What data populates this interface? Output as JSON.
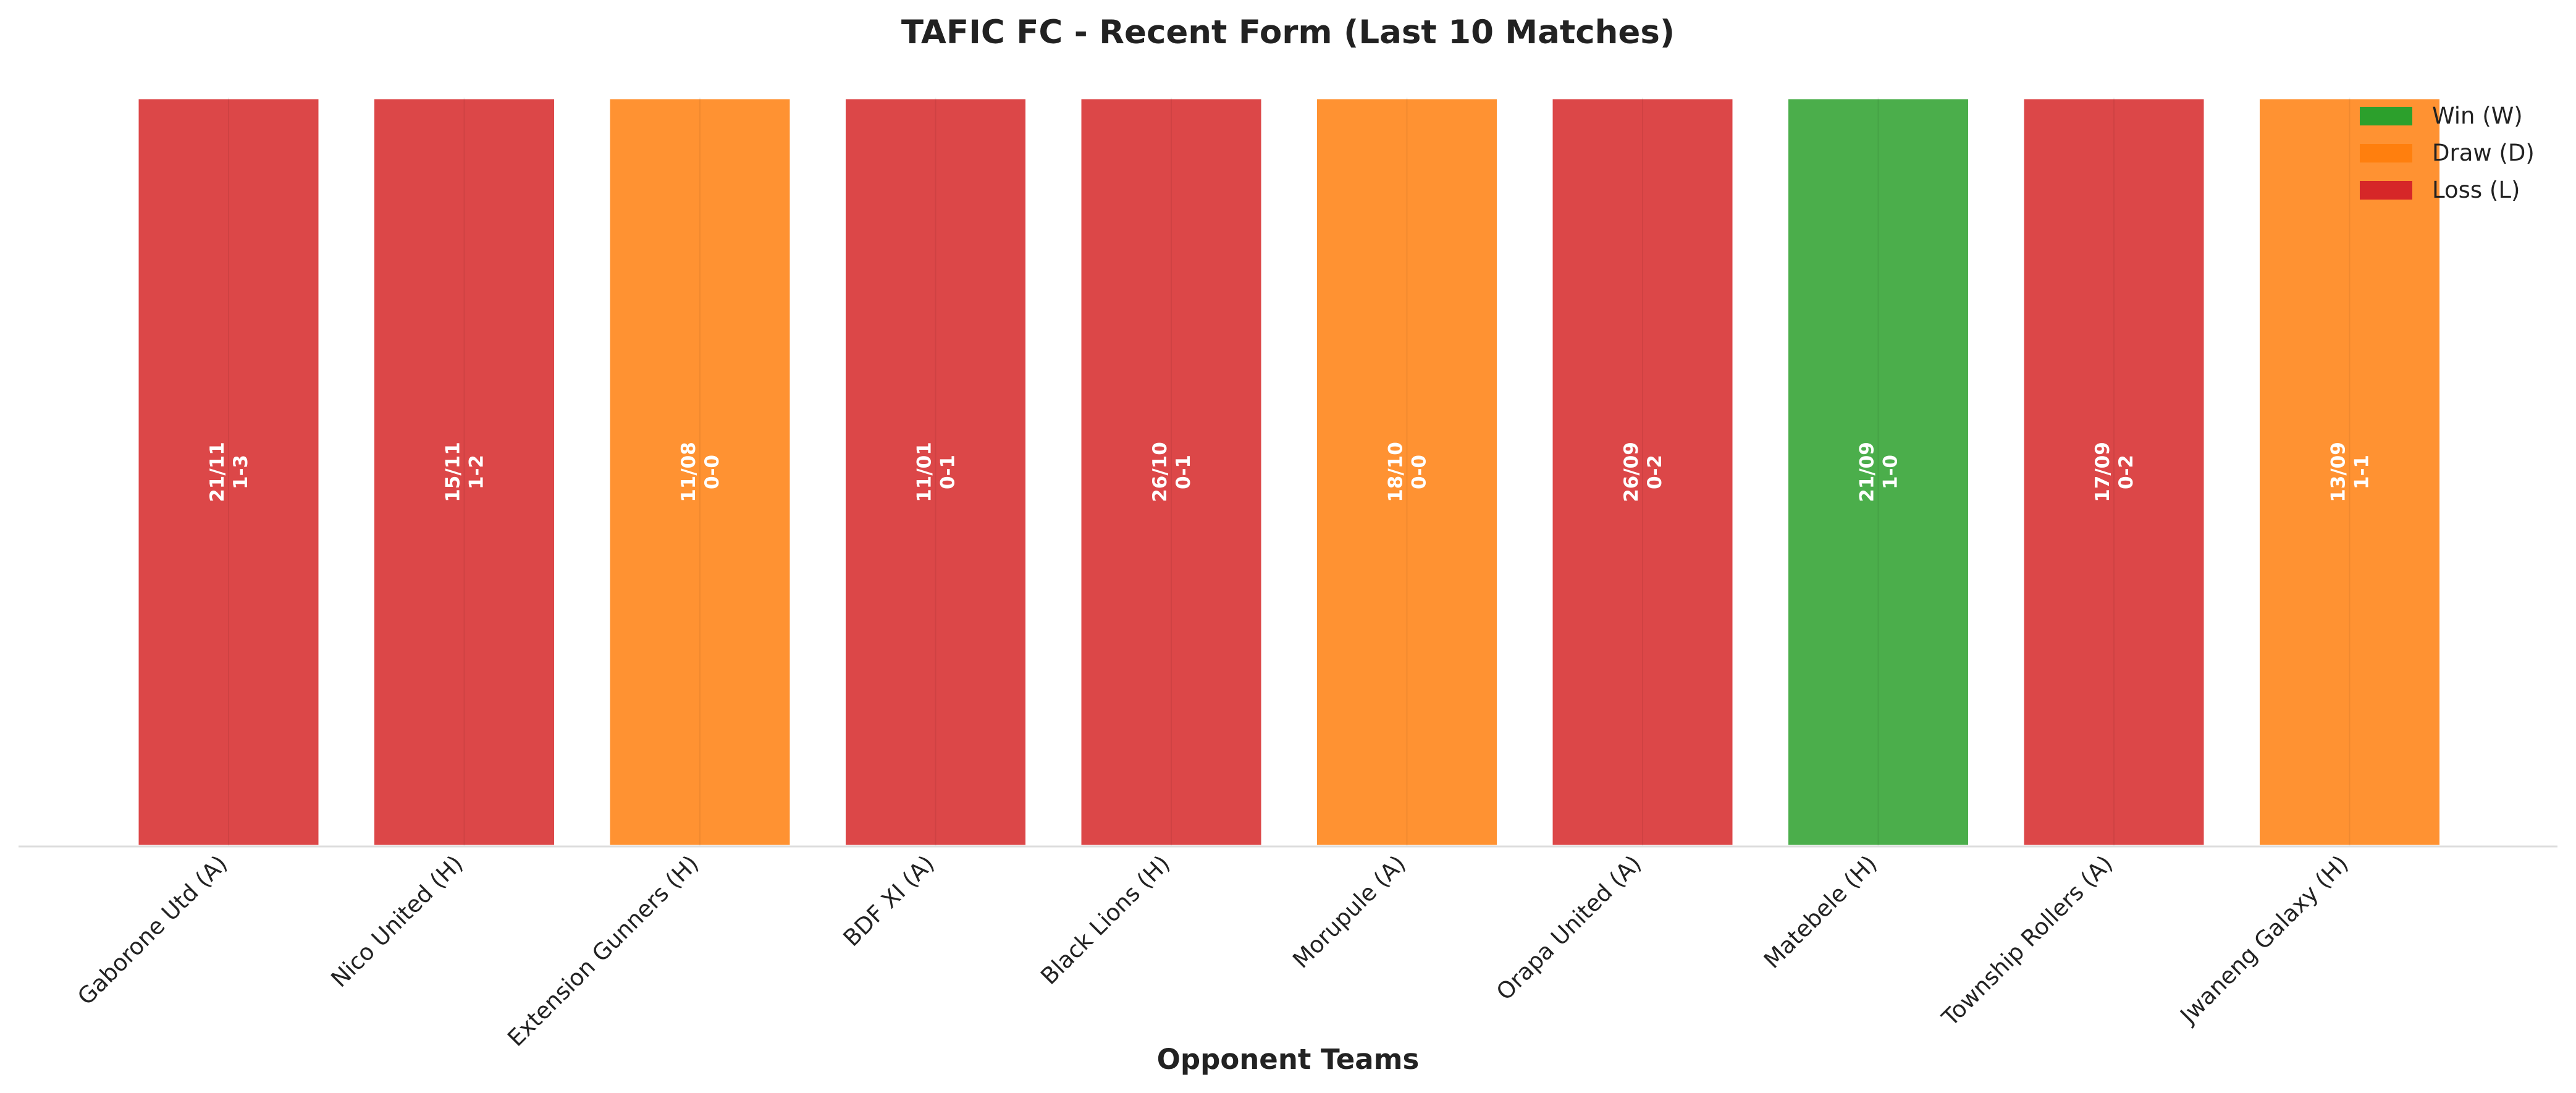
{
  "chart_data": {
    "type": "bar",
    "title": "TAFIC FC - Recent Form (Last 10 Matches)",
    "xlabel": "Opponent Teams",
    "ylabel": "",
    "grid": false,
    "legend_position": "top-right",
    "categories": [
      "Gaborone Utd (A)",
      "Nico United (H)",
      "Extension Gunners (H)",
      "BDF XI (A)",
      "Black Lions (H)",
      "Morupule (A)",
      "Orapa United (A)",
      "Matebele (H)",
      "Township Rollers (A)",
      "Jwaneng Galaxy (H)"
    ],
    "values": [
      1,
      1,
      1,
      1,
      1,
      1,
      1,
      1,
      1,
      1
    ],
    "results": [
      "L",
      "L",
      "D",
      "L",
      "L",
      "D",
      "L",
      "W",
      "L",
      "D"
    ],
    "dates": [
      "21/11",
      "15/11",
      "11/08",
      "11/01",
      "26/10",
      "18/10",
      "26/09",
      "21/09",
      "17/09",
      "13/09"
    ],
    "scores": [
      "1-3",
      "1-2",
      "0-0",
      "0-1",
      "0-1",
      "0-0",
      "0-2",
      "1-0",
      "0-2",
      "1-1"
    ],
    "legend": [
      {
        "key": "W",
        "label": "Win (W)",
        "color": "#2ca02c"
      },
      {
        "key": "D",
        "label": "Draw (D)",
        "color": "#ff7f0e"
      },
      {
        "key": "L",
        "label": "Loss (L)",
        "color": "#d62728"
      }
    ]
  }
}
